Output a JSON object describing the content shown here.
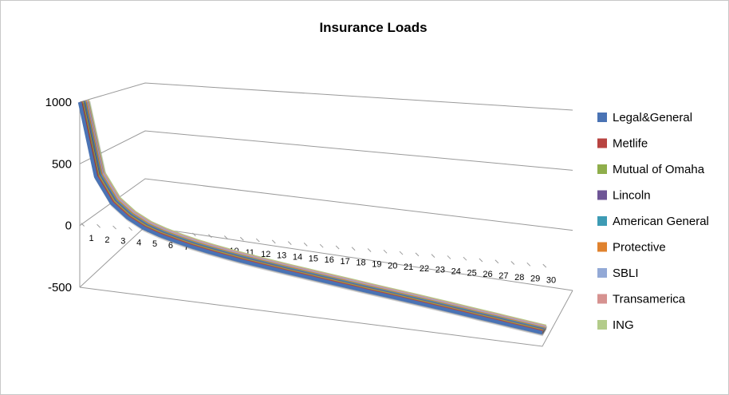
{
  "chart_data": {
    "type": "line",
    "title": "Insurance Loads",
    "xlabel": "",
    "ylabel": "",
    "ylim": [
      -500,
      1000
    ],
    "y_ticks": [
      "1000",
      "500",
      "0",
      "-500"
    ],
    "y_tick_values": [
      1000,
      500,
      0,
      -500
    ],
    "grid": true,
    "legend_position": "right",
    "categories": [
      "1",
      "2",
      "3",
      "4",
      "5",
      "6",
      "7",
      "8",
      "9",
      "10",
      "11",
      "12",
      "13",
      "14",
      "15",
      "16",
      "17",
      "18",
      "19",
      "20",
      "21",
      "22",
      "23",
      "24",
      "25",
      "26",
      "27",
      "28",
      "29",
      "30"
    ],
    "series": [
      {
        "name": "Legal&General",
        "color": "#4a73b4",
        "values": [
          1000,
          405,
          200,
          95,
          25,
          -20,
          -55,
          -85,
          -110,
          -132,
          -152,
          -170,
          -187,
          -203,
          -218,
          -233,
          -247,
          -261,
          -275,
          -288,
          -301,
          -314,
          -327,
          -340,
          -353,
          -366,
          -378,
          -391,
          -403,
          -415
        ]
      },
      {
        "name": "Metlife",
        "color": "#b84340",
        "values": [
          1000,
          405,
          200,
          95,
          25,
          -20,
          -55,
          -85,
          -110,
          -132,
          -152,
          -170,
          -187,
          -203,
          -218,
          -233,
          -247,
          -261,
          -275,
          -288,
          -301,
          -314,
          -327,
          -340,
          -353,
          -366,
          -378,
          -391,
          -403,
          -415
        ]
      },
      {
        "name": "Mutual of Omaha",
        "color": "#8fae4b",
        "values": [
          1000,
          405,
          200,
          95,
          25,
          -20,
          -55,
          -85,
          -110,
          -132,
          -152,
          -170,
          -187,
          -203,
          -218,
          -233,
          -247,
          -261,
          -275,
          -288,
          -301,
          -314,
          -327,
          -340,
          -353,
          -366,
          -378,
          -391,
          -403,
          -415
        ]
      },
      {
        "name": "Lincoln",
        "color": "#6e5596",
        "values": [
          1000,
          405,
          200,
          95,
          25,
          -20,
          -55,
          -85,
          -110,
          -132,
          -152,
          -170,
          -187,
          -203,
          -218,
          -233,
          -247,
          -261,
          -275,
          -288,
          -301,
          -314,
          -327,
          -340,
          -353,
          -366,
          -378,
          -391,
          -403,
          -415
        ]
      },
      {
        "name": "American General",
        "color": "#3d9bb4",
        "values": [
          1000,
          405,
          200,
          95,
          25,
          -20,
          -55,
          -85,
          -110,
          -132,
          -152,
          -170,
          -187,
          -203,
          -218,
          -233,
          -247,
          -261,
          -275,
          -288,
          -301,
          -314,
          -327,
          -340,
          -353,
          -366,
          -378,
          -391,
          -403,
          -415
        ]
      },
      {
        "name": "Protective",
        "color": "#e0822e",
        "values": [
          1000,
          405,
          200,
          95,
          25,
          -20,
          -55,
          -85,
          -110,
          -132,
          -152,
          -170,
          -187,
          -203,
          -218,
          -233,
          -247,
          -261,
          -275,
          -288,
          -301,
          -314,
          -327,
          -340,
          -353,
          -366,
          -378,
          -391,
          -403,
          -415
        ]
      },
      {
        "name": "SBLI",
        "color": "#93a9d6",
        "values": [
          1000,
          405,
          200,
          95,
          25,
          -20,
          -55,
          -85,
          -110,
          -132,
          -152,
          -170,
          -187,
          -203,
          -218,
          -233,
          -247,
          -261,
          -275,
          -288,
          -301,
          -314,
          -327,
          -340,
          -353,
          -366,
          -378,
          -391,
          -403,
          -415
        ]
      },
      {
        "name": "Transamerica",
        "color": "#d69290",
        "values": [
          1000,
          405,
          200,
          95,
          25,
          -20,
          -55,
          -85,
          -110,
          -132,
          -152,
          -170,
          -187,
          -203,
          -218,
          -233,
          -247,
          -261,
          -275,
          -288,
          -301,
          -314,
          -327,
          -340,
          -353,
          -366,
          -378,
          -391,
          -403,
          -415
        ]
      },
      {
        "name": "ING",
        "color": "#b3cc8a",
        "values": [
          1000,
          405,
          200,
          95,
          25,
          -20,
          -55,
          -85,
          -110,
          -132,
          -152,
          -170,
          -187,
          -203,
          -218,
          -233,
          -247,
          -261,
          -275,
          -288,
          -301,
          -314,
          -327,
          -340,
          -353,
          -366,
          -378,
          -391,
          -403,
          -415
        ]
      }
    ]
  }
}
